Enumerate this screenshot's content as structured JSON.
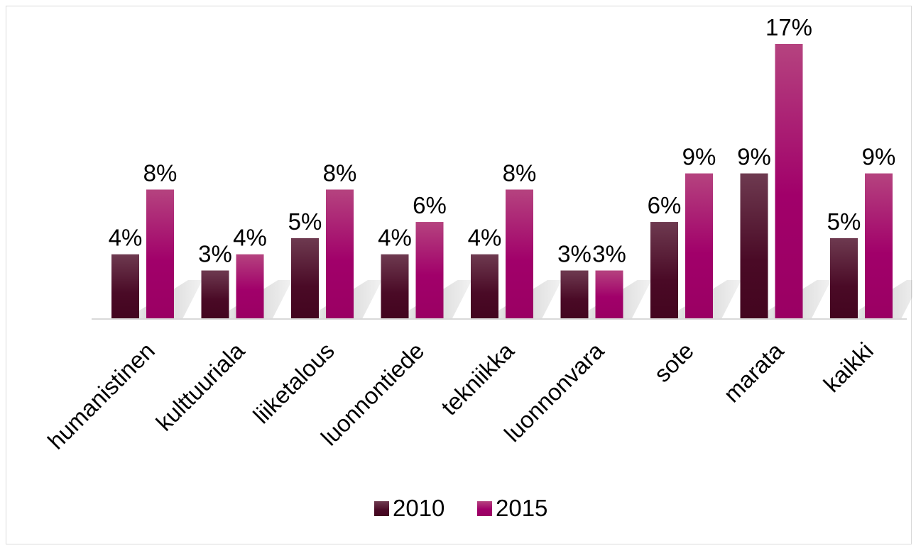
{
  "chart_data": {
    "type": "bar",
    "title": "",
    "xlabel": "",
    "ylabel": "",
    "categories": [
      "humanistinen",
      "kulttuuriala",
      "liiketalous",
      "luonnontiede",
      "tekniikka",
      "luonnonvara",
      "sote",
      "marata",
      "kaikki"
    ],
    "series": [
      {
        "name": "2010",
        "values": [
          4,
          3,
          5,
          4,
          4,
          3,
          6,
          9,
          5
        ],
        "labels": [
          "4%",
          "3%",
          "5%",
          "4%",
          "4%",
          "3%",
          "6%",
          "9%",
          "5%"
        ],
        "color": "#4a0a26"
      },
      {
        "name": "2015",
        "values": [
          8,
          4,
          8,
          6,
          8,
          3,
          9,
          17,
          9
        ],
        "labels": [
          "8%",
          "4%",
          "8%",
          "6%",
          "8%",
          "3%",
          "9%",
          "17%",
          "9%"
        ],
        "color": "#a8006b"
      }
    ],
    "ylim": [
      0,
      17
    ],
    "unit": "%",
    "grid": false,
    "legend_position": "bottom"
  }
}
